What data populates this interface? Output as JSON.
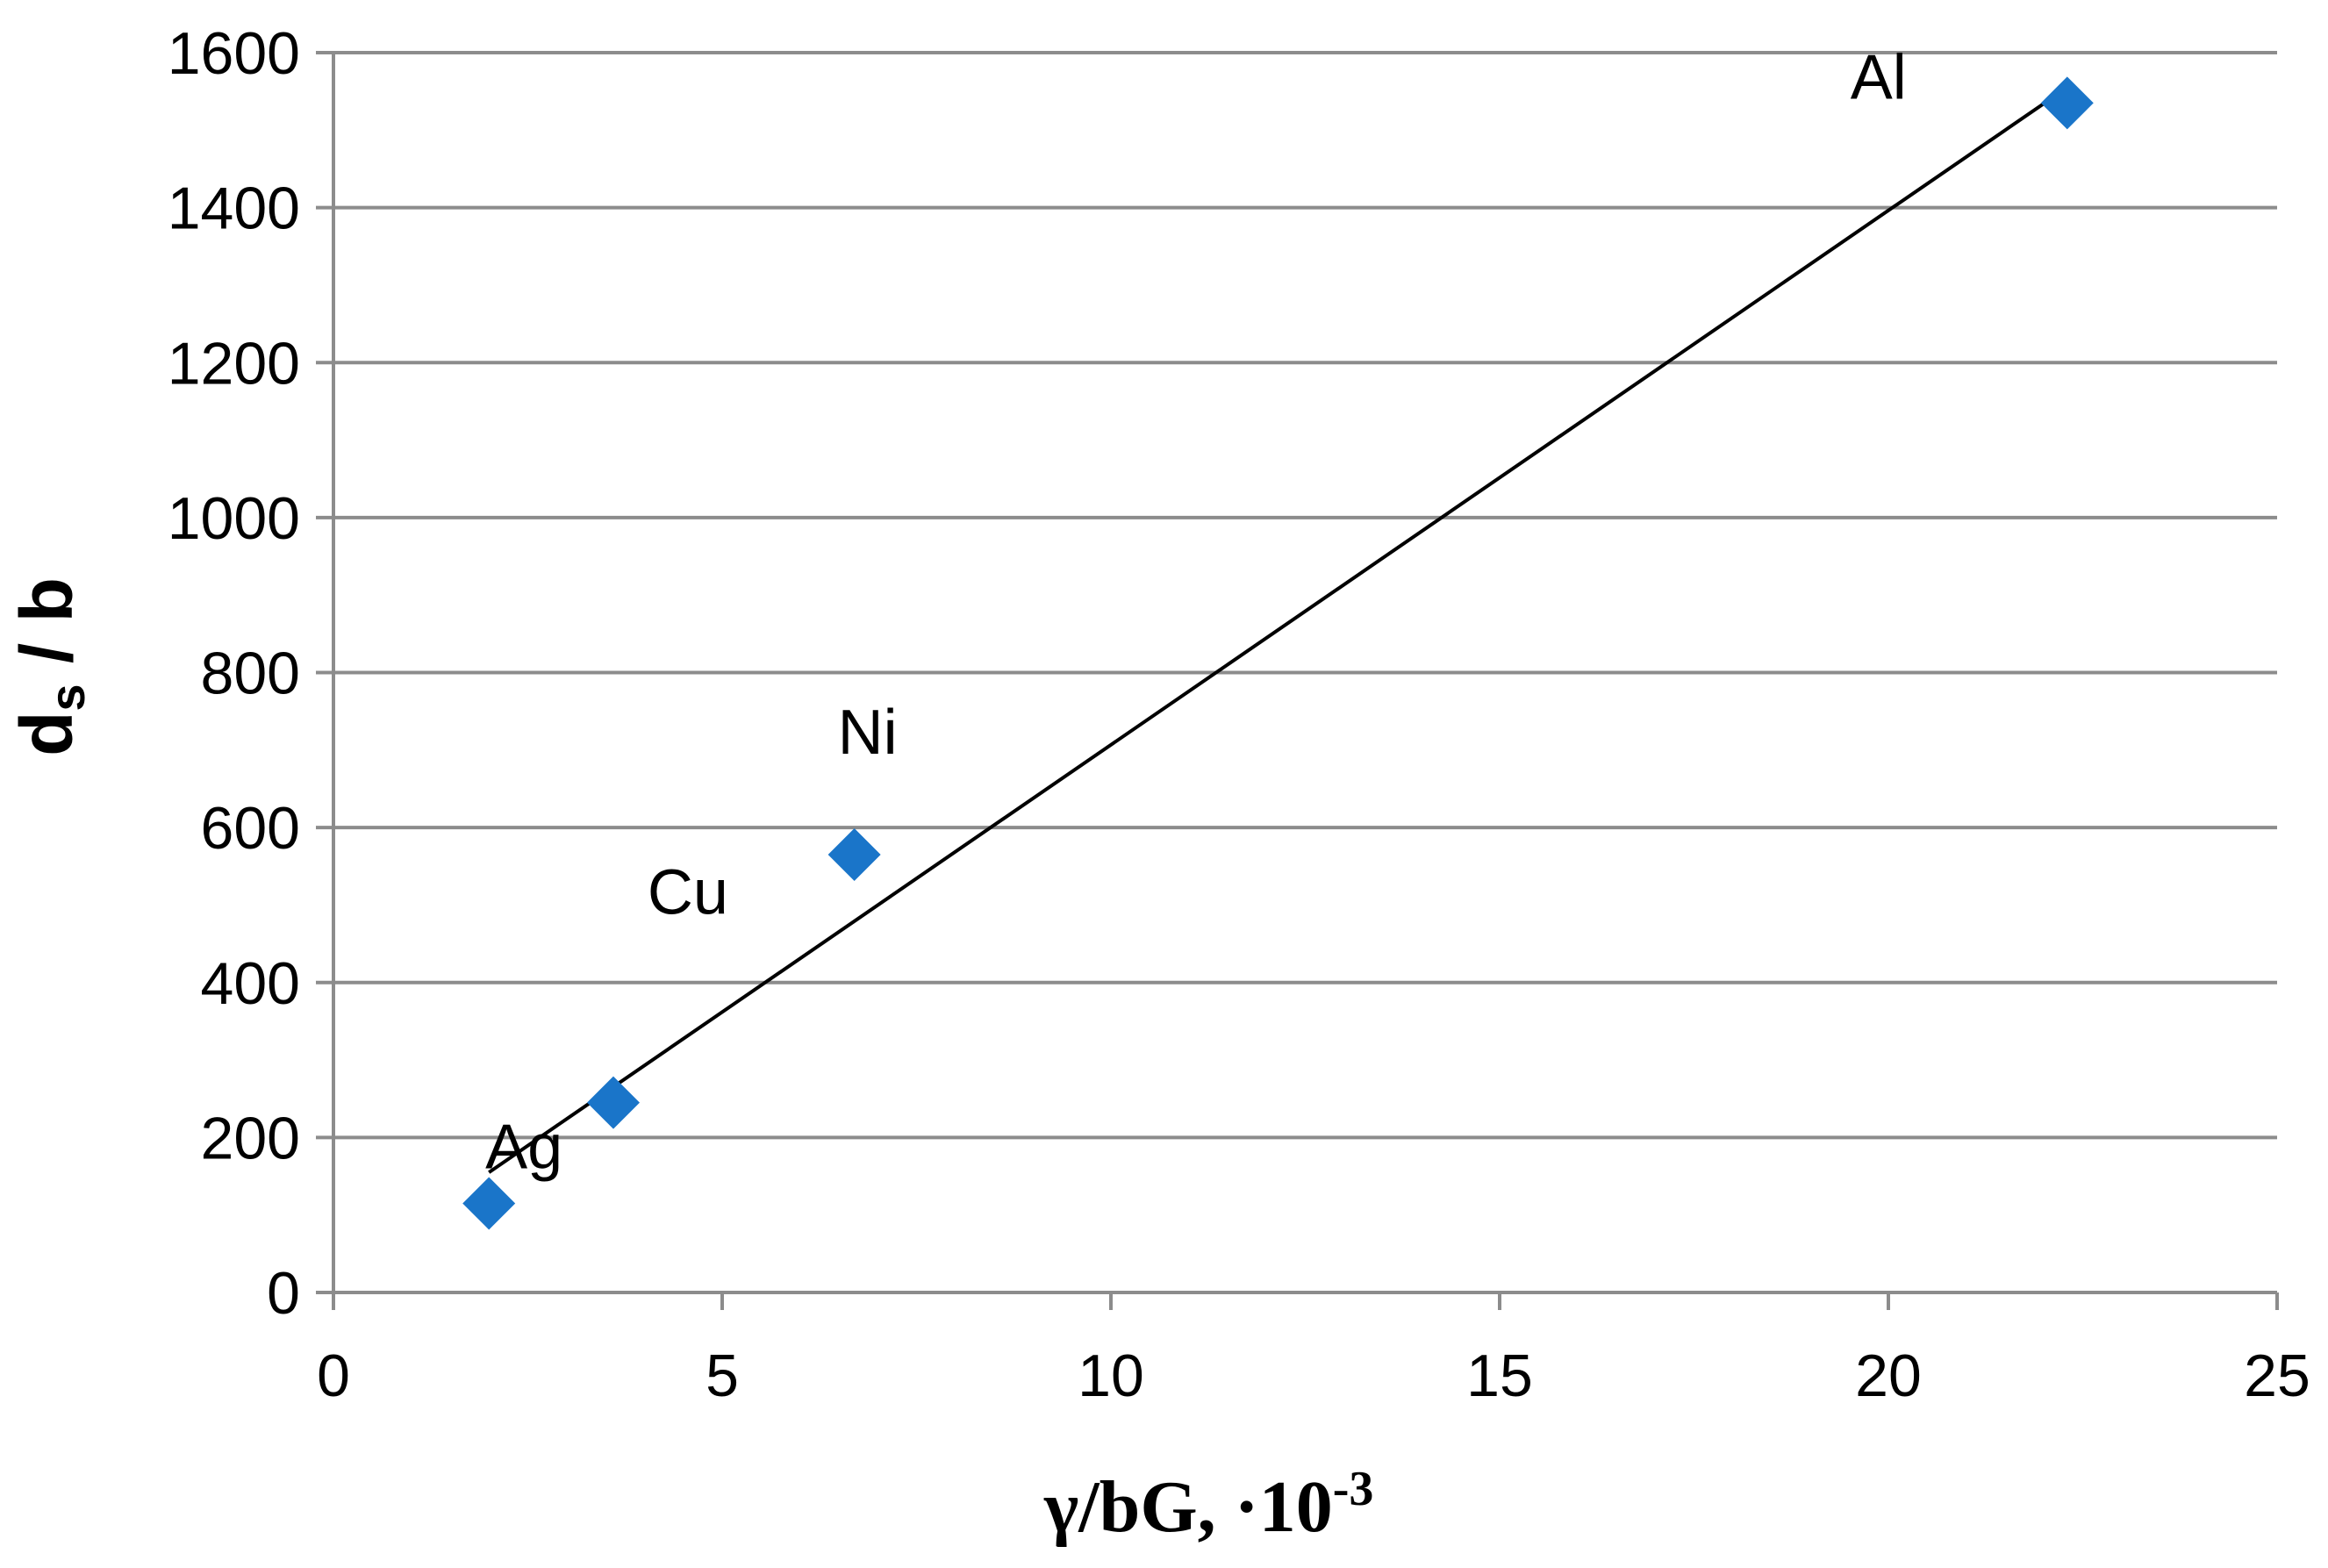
{
  "chart_data": {
    "type": "scatter",
    "title": "",
    "xlabel": {
      "main": "γ/bG, ·10",
      "superscript": "-3"
    },
    "ylabel": {
      "main_d": "d",
      "subscript": "s",
      "rest": " / b"
    },
    "xlim": [
      0,
      25
    ],
    "ylim": [
      0,
      1600
    ],
    "x_ticks": [
      "0",
      "5",
      "10",
      "15",
      "20",
      "25"
    ],
    "y_ticks": [
      "0",
      "200",
      "400",
      "600",
      "800",
      "1000",
      "1200",
      "1400",
      "1600"
    ],
    "grid": "horizontal",
    "legend": "none",
    "marker": "diamond",
    "marker_color": "#1a75c9",
    "points": [
      {
        "label": "Ag",
        "x": 2.0,
        "y": 115
      },
      {
        "label": "Cu",
        "x": 3.6,
        "y": 245
      },
      {
        "label": "Ni",
        "x": 6.7,
        "y": 565
      },
      {
        "label": "Al",
        "x": 22.3,
        "y": 1535
      }
    ],
    "trendline": {
      "type": "linear",
      "x": [
        2.0,
        22.3
      ],
      "y": [
        155,
        1555
      ]
    }
  }
}
